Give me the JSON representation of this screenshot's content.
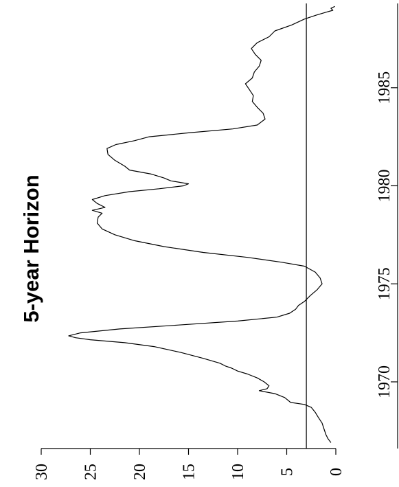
{
  "chart_data": {
    "type": "line",
    "title": "5-year Horizon",
    "xlabel": "",
    "ylabel": "",
    "orientation": "rotated 90 degrees counter-clockwise",
    "xlim": [
      1966.6,
      1989.3
    ],
    "ylim": [
      0,
      30
    ],
    "x_ticks": [
      "1970",
      "1975",
      "1980",
      "1985"
    ],
    "x_tick_values": [
      1970,
      1975,
      1980,
      1985
    ],
    "y_ticks": [
      "0",
      "5",
      "10",
      "15",
      "20",
      "25",
      "30"
    ],
    "y_tick_values": [
      0,
      5,
      10,
      15,
      20,
      25,
      30
    ],
    "reference_line": {
      "y": 3.0
    },
    "grid": false,
    "series": [
      {
        "x": [
          1966.9,
          1967.1,
          1967.3,
          1967.6,
          1967.9,
          1968.2,
          1968.45,
          1968.7,
          1968.85,
          1968.95,
          1969.2,
          1969.4,
          1969.55,
          1969.65,
          1969.8,
          1970.0,
          1970.2,
          1970.4,
          1970.55,
          1970.7,
          1970.8,
          1970.95,
          1971.2,
          1971.5,
          1971.8,
          1972.0,
          1972.15,
          1972.25,
          1972.35,
          1972.5,
          1972.7,
          1972.9,
          1973.1,
          1973.3,
          1973.5,
          1973.7,
          1973.9,
          1974.1,
          1974.4,
          1974.7,
          1975.0,
          1975.3,
          1975.6,
          1975.9,
          1976.1,
          1976.35,
          1976.6,
          1976.9,
          1977.2,
          1977.5,
          1977.8,
          1978.1,
          1978.4,
          1978.6,
          1978.75,
          1978.9,
          1979.1,
          1979.3,
          1979.5,
          1979.7,
          1979.85,
          1980.0,
          1980.1,
          1980.25,
          1980.4,
          1980.6,
          1980.8,
          1981.0,
          1981.3,
          1981.6,
          1981.9,
          1982.1,
          1982.3,
          1982.5,
          1982.7,
          1982.9,
          1983.1,
          1983.4,
          1983.7,
          1984.0,
          1984.3,
          1984.6,
          1984.9,
          1985.2,
          1985.5,
          1985.8,
          1986.1,
          1986.4,
          1986.7,
          1987.0,
          1987.3,
          1987.6,
          1987.9,
          1988.2,
          1988.5,
          1988.7,
          1988.85,
          1988.95,
          1989.05,
          1989.15
        ],
        "values": [
          0.5,
          0.8,
          1.0,
          1.2,
          1.4,
          1.8,
          2.1,
          2.5,
          3.2,
          4.6,
          5.2,
          6.2,
          7.8,
          7.0,
          6.8,
          7.3,
          8.0,
          9.0,
          10.0,
          10.6,
          11.2,
          11.8,
          13.5,
          15.8,
          18.5,
          21.5,
          25.0,
          26.5,
          27.2,
          26.0,
          22.0,
          16.0,
          10.0,
          6.0,
          4.7,
          4.1,
          3.8,
          3.2,
          2.6,
          1.9,
          1.4,
          1.6,
          2.1,
          3.2,
          5.5,
          9.0,
          13.5,
          17.5,
          20.5,
          22.5,
          23.8,
          24.3,
          24.2,
          23.8,
          24.8,
          23.5,
          24.3,
          24.8,
          23.5,
          21.0,
          18.0,
          15.5,
          15.0,
          16.8,
          17.5,
          18.8,
          21.0,
          21.5,
          22.5,
          23.2,
          23.3,
          22.4,
          20.5,
          19.0,
          15.0,
          10.5,
          8.0,
          7.2,
          7.4,
          8.0,
          8.5,
          8.4,
          8.8,
          9.2,
          8.5,
          8.3,
          7.8,
          7.6,
          8.2,
          8.6,
          8.0,
          6.8,
          6.2,
          4.5,
          3.2,
          2.0,
          1.0,
          0.3,
          0.5,
          0.1
        ]
      }
    ]
  }
}
